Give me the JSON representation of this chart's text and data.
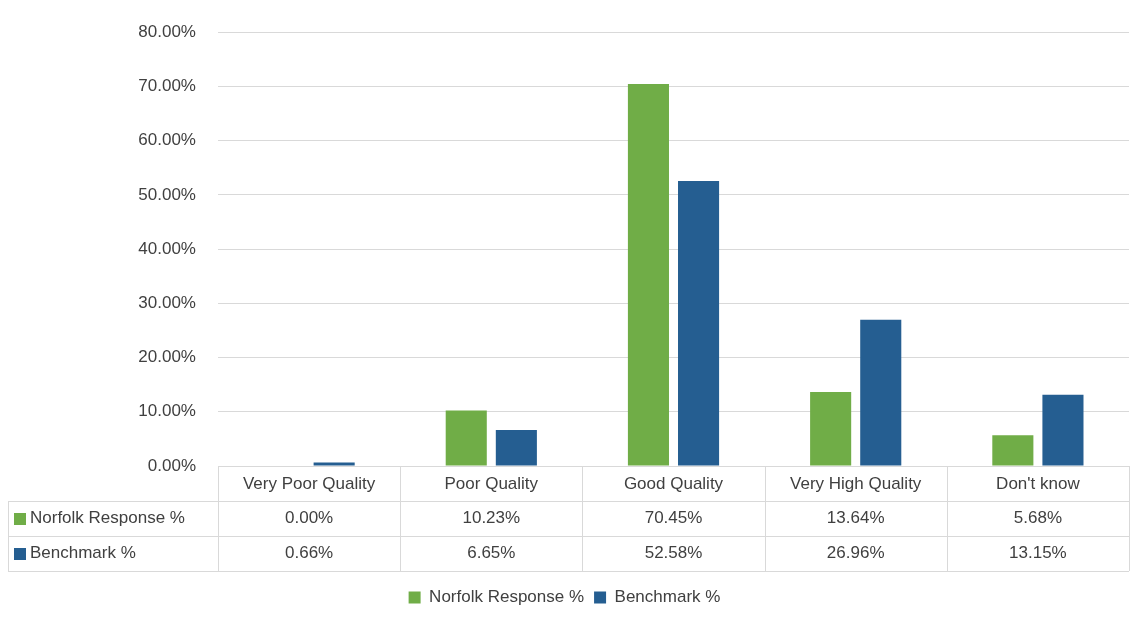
{
  "chart_data": {
    "type": "bar",
    "categories": [
      "Very Poor Quality",
      "Poor Quality",
      "Good Quality",
      "Very High Quality",
      "Don't know"
    ],
    "series": [
      {
        "name": "Norfolk Response %",
        "color": "#70ad47",
        "values": [
          0,
          10.23,
          70.45,
          13.64,
          5.68
        ],
        "value_labels": [
          "0.00%",
          "10.23%",
          "70.45%",
          "13.64%",
          "5.68%"
        ]
      },
      {
        "name": "Benchmark %",
        "color": "#255e91",
        "values": [
          0.66,
          6.65,
          52.58,
          26.96,
          13.15
        ],
        "value_labels": [
          "0.66%",
          "6.65%",
          "52.58%",
          "26.96%",
          "13.15%"
        ]
      }
    ],
    "ylim": [
      0,
      80
    ],
    "yticks": [
      {
        "value": 0,
        "label": "0.00%"
      },
      {
        "value": 10,
        "label": "10.00%"
      },
      {
        "value": 20,
        "label": "20.00%"
      },
      {
        "value": 30,
        "label": "30.00%"
      },
      {
        "value": 40,
        "label": "40.00%"
      },
      {
        "value": 50,
        "label": "50.00%"
      },
      {
        "value": 60,
        "label": "60.00%"
      },
      {
        "value": 70,
        "label": "70.00%"
      },
      {
        "value": 80,
        "label": "80.00%"
      }
    ],
    "grid": "y",
    "legend": "bottom"
  }
}
